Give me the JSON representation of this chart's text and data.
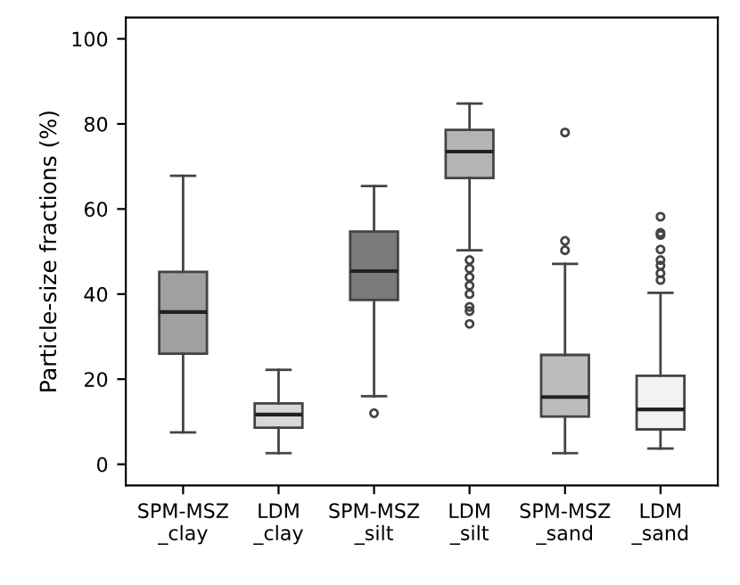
{
  "chart_data": {
    "type": "box",
    "ylabel": "Particle-size fractions (%)",
    "categories": [
      "SPM-MSZ\n_clay",
      "LDM\n_clay",
      "SPM-MSZ\n_silt",
      "LDM\n_silt",
      "SPM-MSZ\n_sand",
      "LDM\n_sand"
    ],
    "colors": [
      "#a0a0a0",
      "#d8d8d8",
      "#7a7a7a",
      "#b4b4b4",
      "#bcbcbc",
      "#f2f2f2"
    ],
    "boxes": [
      {
        "low": 7.5,
        "q1": 26,
        "median": 35.8,
        "q3": 45.2,
        "high": 67.8
      },
      {
        "low": 2.6,
        "q1": 8.6,
        "median": 11.7,
        "q3": 14.3,
        "high": 22.2
      },
      {
        "low": 16,
        "q1": 38.6,
        "median": 45.4,
        "q3": 54.7,
        "high": 65.4,
        "outliers": [
          12
        ]
      },
      {
        "low": 50.3,
        "q1": 67.3,
        "median": 73.5,
        "q3": 78.6,
        "high": 84.8,
        "outliers": [
          48,
          46,
          44,
          42,
          40,
          37,
          36,
          33
        ]
      },
      {
        "low": 2.6,
        "q1": 11.2,
        "median": 15.8,
        "q3": 25.7,
        "high": 47.1,
        "outliers": [
          52.5,
          50.3,
          78
        ]
      },
      {
        "low": 3.7,
        "q1": 8.2,
        "median": 12.9,
        "q3": 20.8,
        "high": 40.3,
        "outliers": [
          58.2,
          54.4,
          53.9,
          50.5,
          48,
          46.7,
          44.9,
          43.3
        ]
      }
    ],
    "ylim": [
      -5,
      105
    ],
    "yticks": [
      0,
      20,
      40,
      60,
      80,
      100
    ],
    "grid": false
  }
}
